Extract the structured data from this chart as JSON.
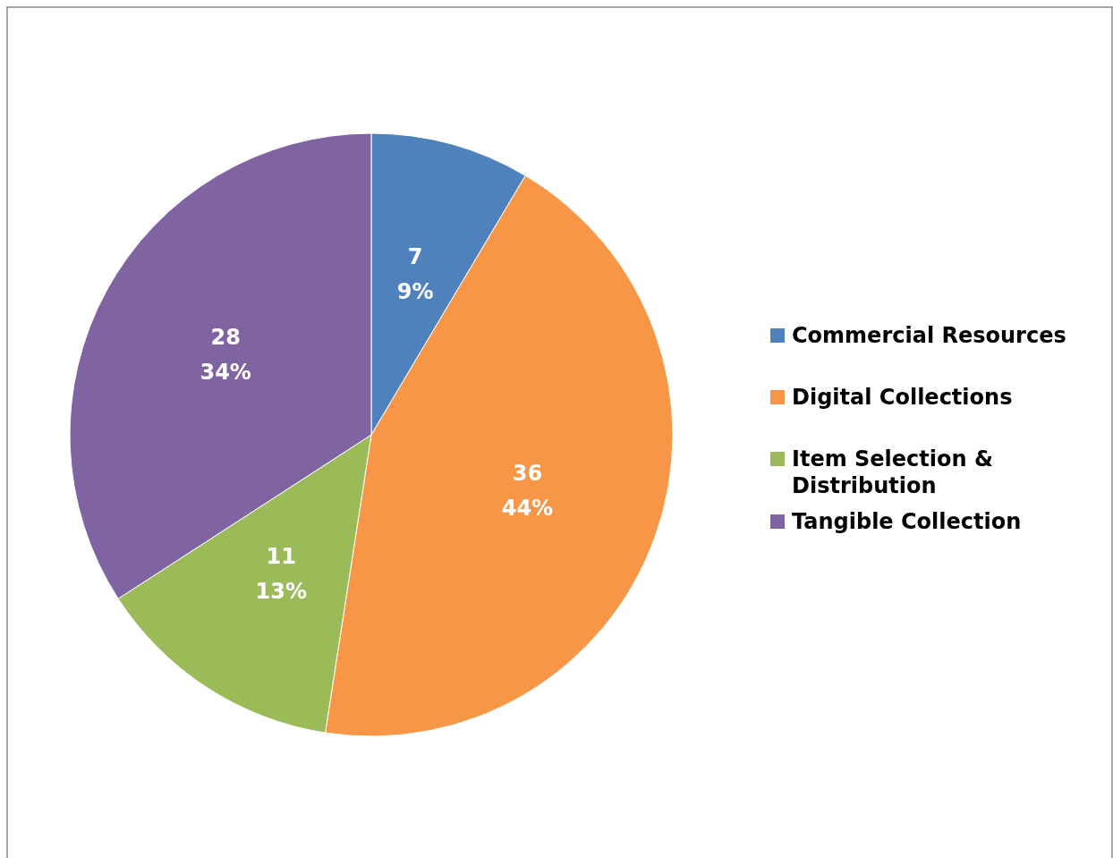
{
  "chart_data": {
    "type": "pie",
    "categories": [
      "Commercial Resources",
      "Digital Collections",
      "Item Selection & Distribution",
      "Tangible Collection"
    ],
    "values": [
      7,
      36,
      11,
      28
    ],
    "colors": [
      "#4f81bd",
      "#f79646",
      "#9bbb59",
      "#8064a2"
    ],
    "value_labels": [
      "7\n9%",
      "36\n44%",
      "11\n13%",
      "28\n34%"
    ],
    "legend": "right"
  }
}
